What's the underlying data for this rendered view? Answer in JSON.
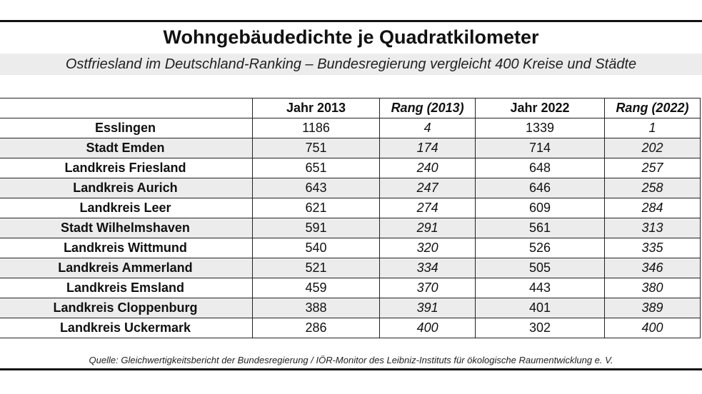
{
  "title": "Wohngebäudedichte je Quadratkilometer",
  "subtitle": "Ostfriesland im Deutschland-Ranking – Bundesregierung vergleicht 400 Kreise und Städte",
  "columns": [
    "",
    "Jahr 2013",
    "Rang (2013)",
    "Jahr 2022",
    "Rang (2022)"
  ],
  "rows": [
    {
      "name": "Esslingen",
      "y2013": "1186",
      "r2013": "4",
      "y2022": "1339",
      "r2022": "1"
    },
    {
      "name": "Stadt Emden",
      "y2013": "751",
      "r2013": "174",
      "y2022": "714",
      "r2022": "202"
    },
    {
      "name": "Landkreis Friesland",
      "y2013": "651",
      "r2013": "240",
      "y2022": "648",
      "r2022": "257"
    },
    {
      "name": "Landkreis Aurich",
      "y2013": "643",
      "r2013": "247",
      "y2022": "646",
      "r2022": "258"
    },
    {
      "name": "Landkreis Leer",
      "y2013": "621",
      "r2013": "274",
      "y2022": "609",
      "r2022": "284"
    },
    {
      "name": "Stadt Wilhelmshaven",
      "y2013": "591",
      "r2013": "291",
      "y2022": "561",
      "r2022": "313"
    },
    {
      "name": "Landkreis Wittmund",
      "y2013": "540",
      "r2013": "320",
      "y2022": "526",
      "r2022": "335"
    },
    {
      "name": "Landkreis Ammerland",
      "y2013": "521",
      "r2013": "334",
      "y2022": "505",
      "r2022": "346"
    },
    {
      "name": "Landkreis Emsland",
      "y2013": "459",
      "r2013": "370",
      "y2022": "443",
      "r2022": "380"
    },
    {
      "name": "Landkreis Cloppenburg",
      "y2013": "388",
      "r2013": "391",
      "y2022": "401",
      "r2022": "389"
    },
    {
      "name": "Landkreis Uckermark",
      "y2013": "286",
      "r2013": "400",
      "y2022": "302",
      "r2022": "400"
    }
  ],
  "source": "Quelle: Gleichwertigkeitsbericht der Bundesregierung / IÖR-Monitor des Leibniz-Instituts für ökologische Raumentwicklung e. V."
}
